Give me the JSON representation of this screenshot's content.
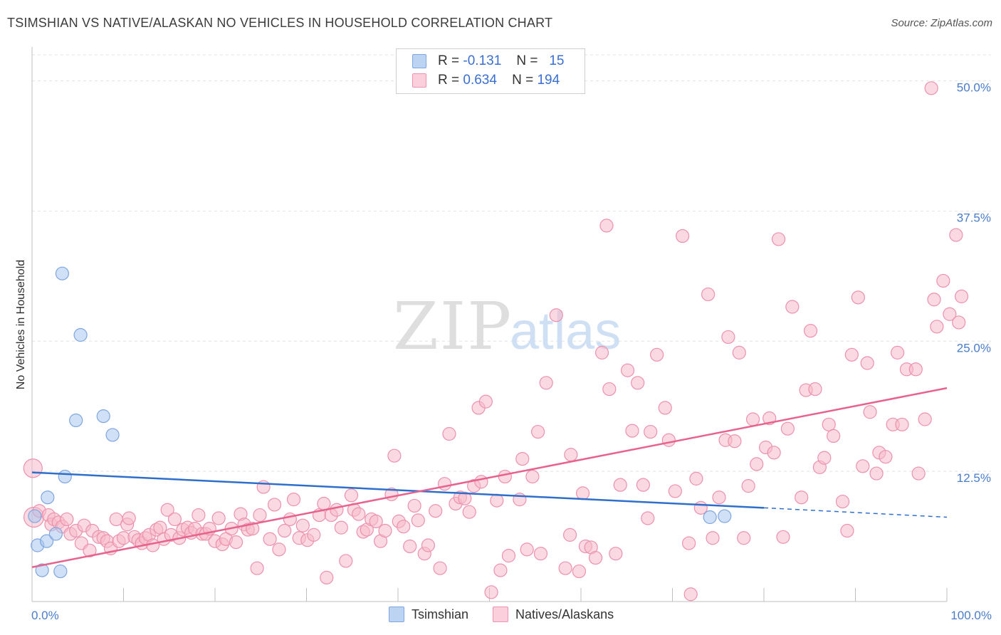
{
  "title": "TSIMSHIAN VS NATIVE/ALASKAN NO VEHICLES IN HOUSEHOLD CORRELATION CHART",
  "source": "Source: ZipAtlas.com",
  "watermark": {
    "zip": "ZIP",
    "atlas": "atlas"
  },
  "legend": {
    "rows": [
      {
        "r_label": "R =",
        "r_value": "-0.131",
        "n_label": "N =",
        "n_value": "15"
      },
      {
        "r_label": "R =",
        "r_value": "0.634",
        "n_label": "N =",
        "n_value": "194"
      }
    ]
  },
  "bottom_legend": [
    "Tsimshian",
    "Natives/Alaskans"
  ],
  "chart_data": {
    "type": "scatter",
    "ylabel": "No Vehicles in Household",
    "xlabel": "",
    "xlim": [
      0,
      100
    ],
    "ylim": [
      0,
      52.5
    ],
    "x_tick_labels": [
      "0.0%",
      "100.0%"
    ],
    "y_ticks": [
      12.5,
      25.0,
      37.5,
      50.0
    ],
    "y_tick_labels": [
      "12.5%",
      "25.0%",
      "37.5%",
      "50.0%"
    ],
    "grid": true,
    "legend_position": "top-center",
    "series": [
      {
        "name": "Tsimshian",
        "color": "#a9c6ee",
        "stroke": "#7ea6df",
        "trend_color": "#2e6fcc",
        "trend": {
          "x0": 0,
          "y0": 12.4,
          "x1": 80,
          "y1": 9.0,
          "x_end": 100,
          "y_end": 8.1
        },
        "points": [
          [
            0.3,
            8.2
          ],
          [
            0.6,
            5.4
          ],
          [
            1.1,
            3.0
          ],
          [
            1.6,
            5.8
          ],
          [
            1.7,
            10.0
          ],
          [
            2.6,
            6.5
          ],
          [
            3.1,
            2.9
          ],
          [
            3.3,
            31.5
          ],
          [
            3.6,
            12.0
          ],
          [
            4.8,
            17.4
          ],
          [
            5.3,
            25.6
          ],
          [
            7.8,
            17.8
          ],
          [
            8.8,
            16.0
          ],
          [
            74.1,
            8.1
          ],
          [
            75.7,
            8.2
          ]
        ]
      },
      {
        "name": "Natives/Alaskans",
        "color": "#f7b9cb",
        "stroke": "#ec91ae",
        "trend_color": "#e8628e",
        "trend": {
          "x0": 0,
          "y0": 3.3,
          "x1": 100,
          "y1": 20.5
        },
        "points": [
          [
            0.1,
            12.8
          ],
          [
            0.2,
            8.1
          ],
          [
            0.8,
            8.7
          ],
          [
            1.8,
            8.3
          ],
          [
            2.1,
            7.4
          ],
          [
            2.4,
            7.9
          ],
          [
            2.9,
            7.6
          ],
          [
            3.3,
            7.2
          ],
          [
            3.8,
            7.9
          ],
          [
            4.2,
            6.5
          ],
          [
            4.8,
            6.8
          ],
          [
            5.4,
            5.6
          ],
          [
            5.7,
            7.3
          ],
          [
            6.3,
            4.9
          ],
          [
            6.6,
            6.8
          ],
          [
            7.3,
            6.2
          ],
          [
            7.8,
            6.1
          ],
          [
            8.2,
            5.8
          ],
          [
            8.6,
            5.1
          ],
          [
            9.2,
            7.9
          ],
          [
            9.5,
            5.8
          ],
          [
            10.0,
            6.1
          ],
          [
            10.4,
            7.4
          ],
          [
            10.6,
            8.0
          ],
          [
            11.2,
            6.2
          ],
          [
            11.6,
            5.9
          ],
          [
            12.0,
            5.6
          ],
          [
            12.4,
            6.1
          ],
          [
            12.8,
            6.4
          ],
          [
            13.2,
            5.4
          ],
          [
            13.6,
            6.9
          ],
          [
            14.0,
            7.1
          ],
          [
            14.4,
            6.0
          ],
          [
            14.8,
            8.8
          ],
          [
            15.2,
            6.4
          ],
          [
            15.6,
            7.9
          ],
          [
            16.1,
            6.1
          ],
          [
            16.5,
            6.9
          ],
          [
            17.0,
            7.1
          ],
          [
            17.4,
            6.6
          ],
          [
            17.8,
            7.0
          ],
          [
            18.2,
            8.3
          ],
          [
            18.6,
            6.5
          ],
          [
            19.0,
            6.5
          ],
          [
            19.4,
            7.0
          ],
          [
            20.0,
            5.8
          ],
          [
            20.4,
            8.0
          ],
          [
            20.8,
            5.5
          ],
          [
            21.2,
            6.0
          ],
          [
            21.8,
            7.0
          ],
          [
            22.3,
            5.7
          ],
          [
            22.8,
            8.4
          ],
          [
            23.2,
            7.4
          ],
          [
            23.6,
            6.9
          ],
          [
            24.1,
            7.0
          ],
          [
            24.6,
            3.2
          ],
          [
            24.9,
            8.3
          ],
          [
            25.3,
            11.0
          ],
          [
            26.0,
            6.0
          ],
          [
            26.5,
            9.3
          ],
          [
            27.0,
            5.0
          ],
          [
            27.6,
            6.8
          ],
          [
            28.2,
            7.9
          ],
          [
            28.6,
            9.8
          ],
          [
            29.2,
            6.1
          ],
          [
            29.6,
            7.3
          ],
          [
            30.1,
            5.9
          ],
          [
            30.8,
            6.4
          ],
          [
            31.4,
            8.3
          ],
          [
            31.9,
            9.4
          ],
          [
            32.2,
            2.3
          ],
          [
            32.7,
            8.3
          ],
          [
            33.3,
            8.8
          ],
          [
            33.8,
            7.1
          ],
          [
            34.3,
            3.9
          ],
          [
            34.9,
            10.2
          ],
          [
            35.2,
            8.8
          ],
          [
            35.7,
            8.4
          ],
          [
            36.2,
            6.7
          ],
          [
            36.6,
            6.9
          ],
          [
            37.1,
            7.9
          ],
          [
            37.6,
            7.7
          ],
          [
            38.1,
            5.8
          ],
          [
            38.6,
            6.8
          ],
          [
            39.3,
            10.3
          ],
          [
            39.6,
            14.0
          ],
          [
            40.1,
            7.7
          ],
          [
            40.6,
            7.2
          ],
          [
            41.3,
            5.3
          ],
          [
            41.8,
            9.2
          ],
          [
            42.2,
            7.8
          ],
          [
            42.9,
            4.6
          ],
          [
            43.3,
            5.4
          ],
          [
            44.1,
            8.7
          ],
          [
            44.6,
            3.2
          ],
          [
            45.1,
            11.3
          ],
          [
            45.6,
            16.1
          ],
          [
            46.3,
            9.4
          ],
          [
            46.8,
            10.0
          ],
          [
            47.3,
            9.9
          ],
          [
            47.8,
            8.6
          ],
          [
            48.3,
            11.1
          ],
          [
            48.8,
            18.6
          ],
          [
            49.1,
            11.5
          ],
          [
            49.6,
            19.2
          ],
          [
            50.2,
            0.9
          ],
          [
            50.8,
            9.7
          ],
          [
            51.2,
            3.0
          ],
          [
            51.7,
            12.0
          ],
          [
            52.1,
            4.4
          ],
          [
            53.3,
            9.8
          ],
          [
            53.6,
            13.7
          ],
          [
            54.1,
            5.0
          ],
          [
            54.7,
            12.0
          ],
          [
            55.3,
            16.3
          ],
          [
            55.6,
            4.6
          ],
          [
            56.2,
            21.0
          ],
          [
            57.3,
            27.5
          ],
          [
            58.3,
            3.2
          ],
          [
            58.8,
            6.4
          ],
          [
            58.9,
            14.1
          ],
          [
            59.8,
            2.9
          ],
          [
            60.2,
            10.4
          ],
          [
            60.5,
            5.3
          ],
          [
            61.1,
            5.2
          ],
          [
            61.6,
            4.2
          ],
          [
            62.3,
            23.9
          ],
          [
            62.8,
            36.1
          ],
          [
            63.1,
            20.4
          ],
          [
            63.8,
            4.6
          ],
          [
            64.3,
            11.2
          ],
          [
            65.1,
            22.2
          ],
          [
            65.6,
            16.4
          ],
          [
            66.2,
            21.0
          ],
          [
            66.8,
            11.2
          ],
          [
            67.3,
            8.0
          ],
          [
            67.6,
            16.3
          ],
          [
            68.3,
            23.7
          ],
          [
            69.2,
            18.6
          ],
          [
            69.6,
            15.5
          ],
          [
            70.3,
            10.6
          ],
          [
            71.1,
            35.1
          ],
          [
            71.8,
            5.6
          ],
          [
            72.0,
            0.7
          ],
          [
            72.6,
            11.8
          ],
          [
            73.1,
            9.0
          ],
          [
            73.9,
            29.5
          ],
          [
            74.4,
            6.1
          ],
          [
            75.1,
            10.0
          ],
          [
            75.8,
            15.5
          ],
          [
            76.1,
            25.4
          ],
          [
            76.8,
            15.4
          ],
          [
            77.3,
            23.9
          ],
          [
            77.8,
            6.1
          ],
          [
            78.3,
            11.1
          ],
          [
            78.8,
            17.5
          ],
          [
            79.2,
            13.2
          ],
          [
            80.2,
            14.8
          ],
          [
            80.6,
            17.6
          ],
          [
            81.1,
            14.3
          ],
          [
            81.6,
            34.8
          ],
          [
            82.1,
            6.2
          ],
          [
            82.6,
            16.6
          ],
          [
            83.1,
            28.3
          ],
          [
            84.1,
            10.0
          ],
          [
            84.6,
            20.3
          ],
          [
            85.1,
            26.0
          ],
          [
            85.6,
            20.4
          ],
          [
            86.1,
            12.9
          ],
          [
            86.6,
            13.8
          ],
          [
            87.1,
            17.0
          ],
          [
            87.6,
            15.9
          ],
          [
            88.6,
            9.6
          ],
          [
            89.1,
            6.8
          ],
          [
            89.6,
            23.7
          ],
          [
            90.3,
            29.2
          ],
          [
            90.8,
            13.0
          ],
          [
            91.3,
            22.9
          ],
          [
            91.6,
            18.2
          ],
          [
            92.3,
            12.3
          ],
          [
            92.6,
            14.3
          ],
          [
            93.3,
            13.9
          ],
          [
            94.1,
            17.0
          ],
          [
            94.6,
            23.9
          ],
          [
            95.1,
            17.0
          ],
          [
            95.6,
            22.3
          ],
          [
            96.6,
            22.3
          ],
          [
            96.9,
            12.3
          ],
          [
            97.6,
            17.5
          ],
          [
            98.3,
            49.3
          ],
          [
            98.6,
            29.0
          ],
          [
            98.9,
            26.4
          ],
          [
            99.6,
            30.8
          ],
          [
            100.3,
            27.6
          ],
          [
            101.0,
            35.2
          ],
          [
            101.3,
            26.8
          ],
          [
            101.6,
            29.3
          ]
        ]
      }
    ]
  }
}
